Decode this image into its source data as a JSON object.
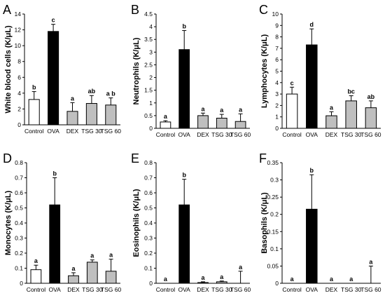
{
  "chart_data": [
    {
      "panel": "A",
      "type": "bar",
      "categories": [
        "Control",
        "OVA",
        "DEX",
        "TSG 30",
        "TSG 60"
      ],
      "values": [
        3.2,
        11.8,
        1.7,
        2.7,
        2.5
      ],
      "errors": [
        1.0,
        0.9,
        1.1,
        1.0,
        0.9
      ],
      "sig_letters": [
        "b",
        "c",
        "a",
        "ab",
        "a b"
      ],
      "ylabel": "White blood cells (K/μL)",
      "ylim": [
        0,
        14
      ],
      "yticks": [
        "0",
        "2",
        "4",
        "6",
        "8",
        "10",
        "12",
        "14"
      ],
      "bar_colors": [
        "#ffffff",
        "#000000",
        "#bfbfbf",
        "#bfbfbf",
        "#bfbfbf"
      ]
    },
    {
      "panel": "B",
      "type": "bar",
      "categories": [
        "Control",
        "OVA",
        "DEX",
        "TSG 30",
        "TSG 60"
      ],
      "values": [
        0.25,
        3.1,
        0.5,
        0.4,
        0.27
      ],
      "errors": [
        0.05,
        0.75,
        0.1,
        0.15,
        0.3
      ],
      "sig_letters": [
        "a",
        "b",
        "a",
        "a",
        "a"
      ],
      "ylabel": "Neutrophils (K/μL)",
      "ylim": [
        0,
        4.5
      ],
      "yticks": [
        "0",
        "0.5",
        "1",
        "1.5",
        "2",
        "2.5",
        "3",
        "3.5",
        "4",
        "4.5"
      ],
      "bar_colors": [
        "#ffffff",
        "#000000",
        "#bfbfbf",
        "#bfbfbf",
        "#bfbfbf"
      ]
    },
    {
      "panel": "C",
      "type": "bar",
      "categories": [
        "Control",
        "OVA",
        "DEX",
        "TSG 30",
        "TSG 60"
      ],
      "values": [
        3.0,
        7.3,
        1.1,
        2.4,
        1.8
      ],
      "errors": [
        0.6,
        1.4,
        0.35,
        0.45,
        0.6
      ],
      "sig_letters": [
        "c",
        "d",
        "a",
        "bc",
        "ab"
      ],
      "ylabel": "Lymphocytes (K/μL)",
      "ylim": [
        0,
        10
      ],
      "yticks": [
        "0",
        "1",
        "2",
        "3",
        "4",
        "5",
        "6",
        "7",
        "8",
        "9",
        "10"
      ],
      "bar_colors": [
        "#ffffff",
        "#000000",
        "#bfbfbf",
        "#bfbfbf",
        "#bfbfbf"
      ]
    },
    {
      "panel": "D",
      "type": "bar",
      "categories": [
        "Control",
        "OVA",
        "DEX",
        "TSG 30",
        "TSG 60"
      ],
      "values": [
        0.09,
        0.52,
        0.05,
        0.14,
        0.08
      ],
      "errors": [
        0.03,
        0.18,
        0.02,
        0.015,
        0.08
      ],
      "sig_letters": [
        "a",
        "b",
        "a",
        "a",
        "a"
      ],
      "ylabel": "Monocytes (K/μL)",
      "ylim": [
        0,
        0.8
      ],
      "yticks": [
        "0",
        "0.1",
        "0.2",
        "0.3",
        "0.4",
        "0.5",
        "0.6",
        "0.7",
        "0.8"
      ],
      "bar_colors": [
        "#ffffff",
        "#000000",
        "#bfbfbf",
        "#bfbfbf",
        "#bfbfbf"
      ]
    },
    {
      "panel": "E",
      "type": "bar",
      "categories": [
        "Control",
        "OVA",
        "DEX",
        "TSG 30",
        "TSG 60"
      ],
      "values": [
        0.0,
        0.52,
        0.005,
        0.01,
        0.0
      ],
      "errors": [
        0.0,
        0.17,
        0.005,
        0.005,
        0.08
      ],
      "sig_letters": [
        "a",
        "b",
        "a",
        "a",
        "a"
      ],
      "ylabel": "Eosinophils (K/μL)",
      "ylim": [
        0,
        0.8
      ],
      "yticks": [
        "0",
        "0.1",
        "0.2",
        "0.3",
        "0.4",
        "0.5",
        "0.6",
        "0.7",
        "0.8"
      ],
      "bar_colors": [
        "#ffffff",
        "#000000",
        "#bfbfbf",
        "#bfbfbf",
        "#bfbfbf"
      ]
    },
    {
      "panel": "F",
      "type": "bar",
      "categories": [
        "Control",
        "OVA",
        "DEX",
        "TSG 30",
        "TSG 60"
      ],
      "values": [
        0.0,
        0.215,
        0.0,
        0.0,
        0.0
      ],
      "errors": [
        0.0,
        0.1,
        0.0,
        0.0,
        0.05
      ],
      "sig_letters": [
        "a",
        "b",
        "a",
        "a",
        "a"
      ],
      "ylabel": "Basophils (K/μL)",
      "ylim": [
        0,
        0.35
      ],
      "yticks": [
        "0",
        "0.05",
        "0.1",
        "0.15",
        "0.2",
        "0.25",
        "0.3",
        "0.35"
      ],
      "bar_colors": [
        "#ffffff",
        "#000000",
        "#bfbfbf",
        "#bfbfbf",
        "#bfbfbf"
      ]
    }
  ]
}
